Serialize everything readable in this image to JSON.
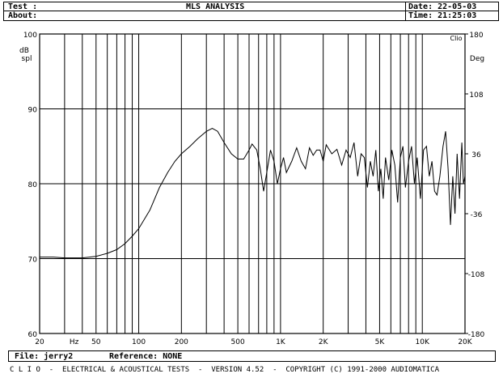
{
  "header": {
    "test_label": "Test :",
    "about_label": "About:",
    "title": "MLS ANALYSIS",
    "date_label": "Date: 22-05-03",
    "time_label": "Time: 21:25:03"
  },
  "footer": {
    "file_label": "File: jerry2",
    "reference_label": "Reference: NONE",
    "status_line": "C L I O  -  ELECTRICAL & ACOUSTICAL TESTS  -  VERSION 4.52  -  COPYRIGHT (C) 1991-2000 AUDIOMATICA"
  },
  "chart_data": {
    "type": "line",
    "title": "MLS ANALYSIS",
    "brand_mark": "Clio",
    "xscale": "log",
    "xlim": [
      20,
      20000
    ],
    "ylim": [
      60,
      100
    ],
    "y2lim": [
      -180,
      180
    ],
    "grid": true,
    "ylabel": [
      "dB",
      "spl"
    ],
    "y2label": "Deg",
    "x_ticks": [
      "20",
      "Hz",
      "50",
      "100",
      "200",
      "500",
      "1K",
      "2K",
      "5K",
      "10K",
      "20K"
    ],
    "y_ticks": [
      "100",
      "90",
      "80",
      "70",
      "60"
    ],
    "y2_ticks": [
      "180",
      "108",
      "36",
      "-36",
      "-108",
      "-180"
    ],
    "series": [
      {
        "color": "#000000",
        "points": [
          [
            20,
            70.2
          ],
          [
            25,
            70.2
          ],
          [
            30,
            70.1
          ],
          [
            40,
            70.1
          ],
          [
            50,
            70.3
          ],
          [
            60,
            70.7
          ],
          [
            70,
            71.2
          ],
          [
            80,
            72.0
          ],
          [
            90,
            73.0
          ],
          [
            100,
            74.0
          ],
          [
            120,
            76.5
          ],
          [
            140,
            79.5
          ],
          [
            160,
            81.5
          ],
          [
            180,
            83.0
          ],
          [
            200,
            84.0
          ],
          [
            230,
            85.0
          ],
          [
            260,
            86.0
          ],
          [
            300,
            87.0
          ],
          [
            330,
            87.4
          ],
          [
            360,
            87.0
          ],
          [
            400,
            85.5
          ],
          [
            450,
            84.0
          ],
          [
            500,
            83.3
          ],
          [
            550,
            83.3
          ],
          [
            600,
            84.5
          ],
          [
            630,
            85.3
          ],
          [
            680,
            84.5
          ],
          [
            720,
            82.0
          ],
          [
            760,
            79.0
          ],
          [
            800,
            81.5
          ],
          [
            850,
            84.5
          ],
          [
            900,
            83.0
          ],
          [
            950,
            80.0
          ],
          [
            1000,
            82.0
          ],
          [
            1050,
            83.5
          ],
          [
            1100,
            81.5
          ],
          [
            1200,
            83.0
          ],
          [
            1300,
            84.8
          ],
          [
            1400,
            83.0
          ],
          [
            1500,
            82.0
          ],
          [
            1600,
            84.8
          ],
          [
            1700,
            83.8
          ],
          [
            1800,
            84.5
          ],
          [
            1900,
            84.5
          ],
          [
            2000,
            83.0
          ],
          [
            2100,
            85.2
          ],
          [
            2300,
            84.0
          ],
          [
            2500,
            84.6
          ],
          [
            2700,
            82.5
          ],
          [
            2900,
            84.5
          ],
          [
            3100,
            83.5
          ],
          [
            3300,
            85.5
          ],
          [
            3500,
            81.0
          ],
          [
            3700,
            84.0
          ],
          [
            3900,
            83.5
          ],
          [
            4100,
            79.5
          ],
          [
            4300,
            83.0
          ],
          [
            4500,
            81.0
          ],
          [
            4700,
            84.5
          ],
          [
            4900,
            79.0
          ],
          [
            5100,
            82.0
          ],
          [
            5300,
            78.0
          ],
          [
            5500,
            83.5
          ],
          [
            5800,
            80.5
          ],
          [
            6100,
            84.5
          ],
          [
            6400,
            82.5
          ],
          [
            6700,
            77.5
          ],
          [
            7000,
            83.5
          ],
          [
            7300,
            85.0
          ],
          [
            7600,
            79.5
          ],
          [
            8000,
            83.0
          ],
          [
            8400,
            85.0
          ],
          [
            8800,
            80.0
          ],
          [
            9200,
            83.5
          ],
          [
            9700,
            78.0
          ],
          [
            10200,
            84.5
          ],
          [
            10700,
            85.0
          ],
          [
            11200,
            81.0
          ],
          [
            11700,
            83.0
          ],
          [
            12200,
            79.0
          ],
          [
            12700,
            78.5
          ],
          [
            13300,
            81.0
          ],
          [
            14000,
            85.0
          ],
          [
            14600,
            87.0
          ],
          [
            15200,
            82.0
          ],
          [
            15800,
            74.5
          ],
          [
            16400,
            81.0
          ],
          [
            17000,
            76.0
          ],
          [
            17600,
            84.0
          ],
          [
            18300,
            78.0
          ],
          [
            19000,
            85.5
          ],
          [
            19500,
            80.0
          ],
          [
            20000,
            81.0
          ]
        ]
      }
    ]
  }
}
